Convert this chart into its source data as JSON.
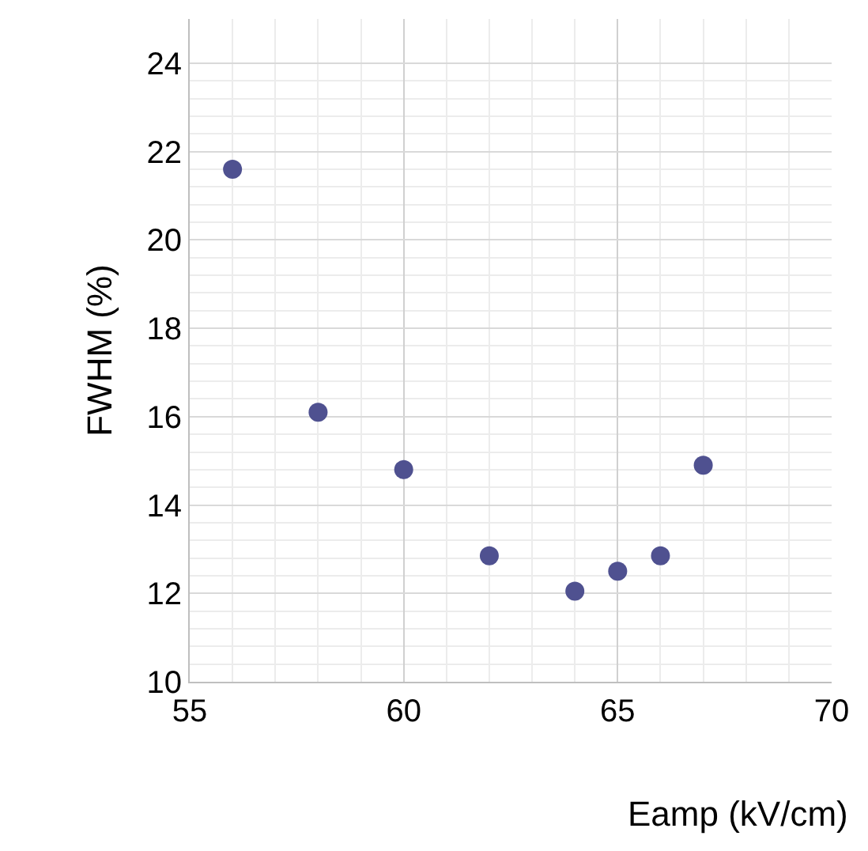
{
  "chart_data": {
    "type": "scatter",
    "xlabel": "Eamp (kV/cm)",
    "ylabel": "FWHM (%)",
    "x": [
      56,
      58,
      60,
      62,
      64,
      65,
      66,
      67
    ],
    "series": [
      {
        "color": "#4f5190",
        "values": [
          21.6,
          16.1,
          14.8,
          12.85,
          12.05,
          12.5,
          12.85,
          14.9
        ]
      }
    ],
    "xlim": [
      55,
      70
    ],
    "xticks": [
      55,
      60,
      65,
      70
    ],
    "ylim": [
      10,
      25
    ],
    "yticks": [
      10,
      12,
      14,
      16,
      18,
      20,
      22,
      24
    ],
    "grid": true,
    "marker": "circle"
  }
}
